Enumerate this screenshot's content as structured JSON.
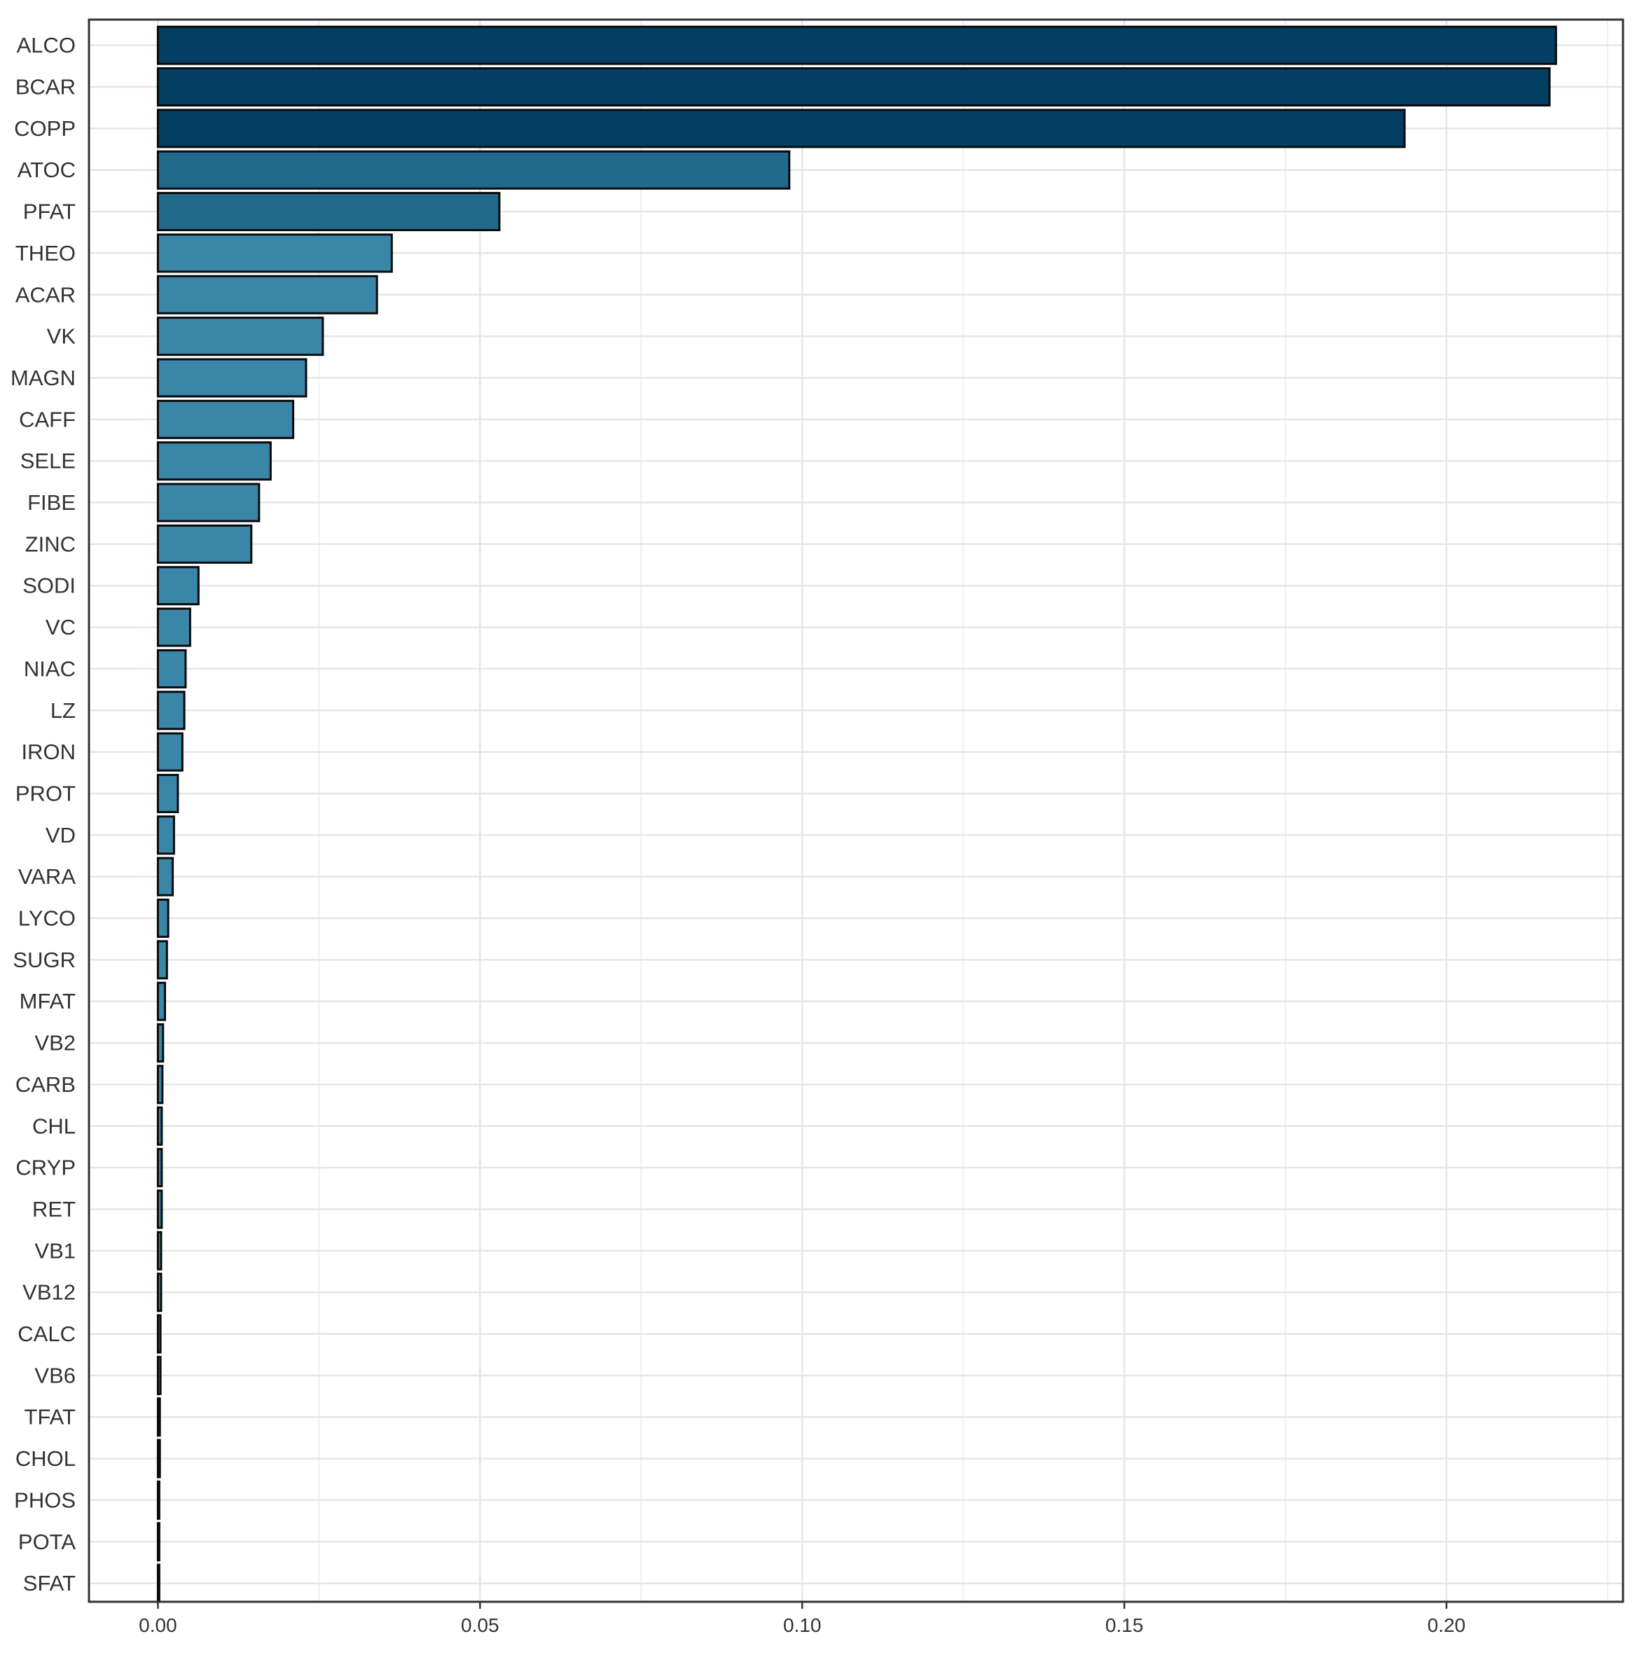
{
  "chart_data": {
    "type": "bar",
    "orientation": "horizontal",
    "title": "",
    "xlabel": "",
    "ylabel": "",
    "categories": [
      "ALCO",
      "BCAR",
      "COPP",
      "ATOC",
      "PFAT",
      "THEO",
      "ACAR",
      "VK",
      "MAGN",
      "CAFF",
      "SELE",
      "FIBE",
      "ZINC",
      "SODI",
      "VC",
      "NIAC",
      "LZ",
      "IRON",
      "PROT",
      "VD",
      "VARA",
      "LYCO",
      "SUGR",
      "MFAT",
      "VB2",
      "CARB",
      "CHL",
      "CRYP",
      "RET",
      "VB1",
      "VB12",
      "CALC",
      "VB6",
      "TFAT",
      "CHOL",
      "PHOS",
      "POTA",
      "SFAT"
    ],
    "values": [
      0.217,
      0.216,
      0.1935,
      0.098,
      0.053,
      0.0363,
      0.034,
      0.0256,
      0.023,
      0.021,
      0.0175,
      0.0157,
      0.0145,
      0.0063,
      0.005,
      0.0043,
      0.0041,
      0.0038,
      0.0031,
      0.0025,
      0.0023,
      0.0016,
      0.0014,
      0.0011,
      0.0008,
      0.0007,
      0.0006,
      0.0006,
      0.0006,
      0.0005,
      0.0005,
      0.0004,
      0.0004,
      0.0003,
      0.0003,
      0.0002,
      0.0002,
      0.0001
    ],
    "xticks": [
      0.0,
      0.05,
      0.1,
      0.15,
      0.2
    ],
    "xtick_labels": [
      "0.00",
      "0.05",
      "0.10",
      "0.15",
      "0.20"
    ],
    "xlim": [
      -0.0107,
      0.2274
    ],
    "grid": true,
    "legend": "none",
    "colors": {
      "bar_high": "#023f63",
      "bar_mid": "#226a8c",
      "bar_low": "#3a86a8",
      "bar_outline": "#0a0a0a",
      "grid_major": "#e6e6e6",
      "grid_minor": "#f0f0f0",
      "panel_border": "#333333"
    }
  }
}
